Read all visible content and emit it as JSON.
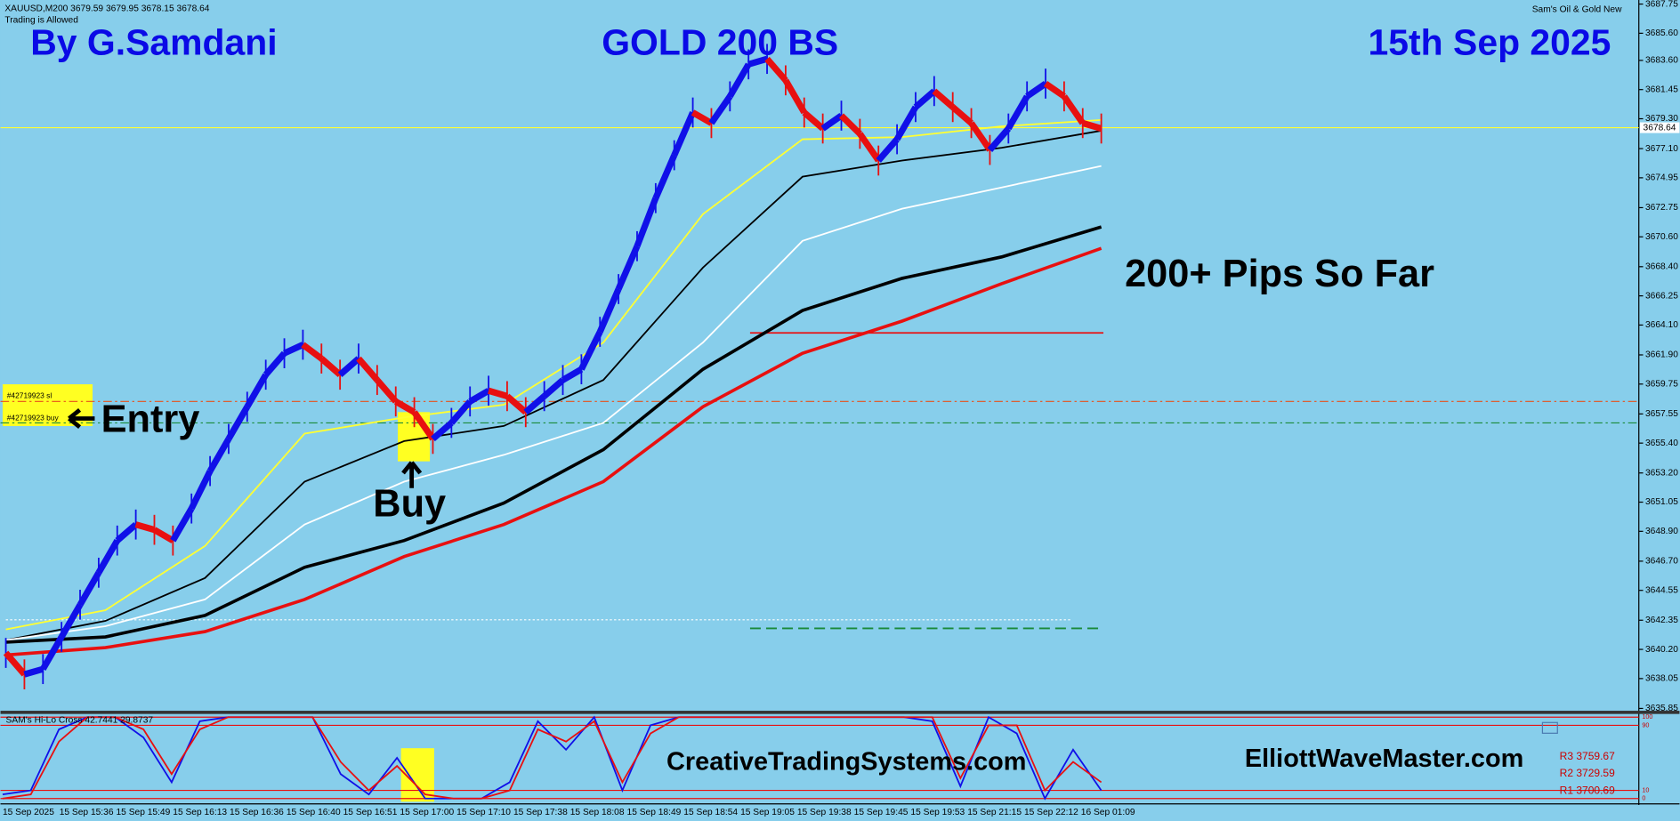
{
  "header": {
    "symbol_line": "XAUUSD,M200  3679.59 3679.95 3678.15 3678.64",
    "status": "Trading is Allowed",
    "author": "By G.Samdani",
    "title": "GOLD 200 BS",
    "date": "15th Sep 2025",
    "ea_name": "Sam's Oil & Gold New"
  },
  "annotations": {
    "pips": "200+ Pips So Far",
    "entry": "Entry",
    "buy": "Buy",
    "order_sl": "#42719923 sl",
    "order_buy": "#42719923 buy",
    "site1": "CreativeTradingSystems.com",
    "site2": "ElliottWaveMaster.com"
  },
  "price_chart": {
    "ylim": [
      3635.6,
      3688.05
    ],
    "yticks": [
      {
        "value": 3687.75,
        "label": "3687.75"
      },
      {
        "value": 3685.6,
        "label": "3685.60"
      },
      {
        "value": 3683.6,
        "label": "3683.60"
      },
      {
        "value": 3681.45,
        "label": "3681.45"
      },
      {
        "value": 3679.3,
        "label": "3679.30"
      },
      {
        "value": 3677.1,
        "label": "3677.10"
      },
      {
        "value": 3674.95,
        "label": "3674.95"
      },
      {
        "value": 3672.75,
        "label": "3672.75"
      },
      {
        "value": 3670.6,
        "label": "3670.60"
      },
      {
        "value": 3668.4,
        "label": "3668.40"
      },
      {
        "value": 3666.25,
        "label": "3666.25"
      },
      {
        "value": 3664.1,
        "label": "3664.10"
      },
      {
        "value": 3661.9,
        "label": "3661.90"
      },
      {
        "value": 3659.75,
        "label": "3659.75"
      },
      {
        "value": 3657.55,
        "label": "3657.55"
      },
      {
        "value": 3655.4,
        "label": "3655.40"
      },
      {
        "value": 3653.2,
        "label": "3653.20"
      },
      {
        "value": 3651.05,
        "label": "3651.05"
      },
      {
        "value": 3648.9,
        "label": "3648.90"
      },
      {
        "value": 3646.7,
        "label": "3646.70"
      },
      {
        "value": 3644.55,
        "label": "3644.55"
      },
      {
        "value": 3642.35,
        "label": "3642.35"
      },
      {
        "value": 3640.2,
        "label": "3640.20"
      },
      {
        "value": 3638.05,
        "label": "3638.05"
      },
      {
        "value": 3635.85,
        "label": "3635.85"
      }
    ],
    "current_price": {
      "value": 3678.64,
      "label": "3678.64"
    },
    "up_color": "#1010e8",
    "down_color": "#e81010",
    "prices": [
      3639.94,
      3638.36,
      3638.75,
      3641.12,
      3643.49,
      3645.85,
      3648.22,
      3649.4,
      3649.01,
      3648.22,
      3650.58,
      3653.34,
      3655.71,
      3658.08,
      3660.44,
      3662.02,
      3662.65,
      3661.63,
      3660.44,
      3661.63,
      3660.05,
      3658.47,
      3657.68,
      3655.71,
      3656.89,
      3658.47,
      3659.26,
      3658.86,
      3657.68,
      3658.86,
      3660.05,
      3660.84,
      3663.6,
      3666.75,
      3669.91,
      3673.45,
      3676.61,
      3679.76,
      3678.98,
      3680.95,
      3683.31,
      3683.71,
      3682.13,
      3679.76,
      3678.58,
      3679.53,
      3678.19,
      3676.22,
      3677.79,
      3680.16,
      3681.34,
      3680.16,
      3678.98,
      3677.0,
      3678.58,
      3680.95,
      3681.89,
      3680.95,
      3678.98,
      3678.58
    ],
    "moving_averages": [
      {
        "color": "#ffff33",
        "width": 1.5,
        "values": [
          3641.67,
          3643.09,
          3647.82,
          3656.1,
          3657.29,
          3658.23,
          3662.81,
          3672.27,
          3677.79,
          3677.95,
          3678.74,
          3679.21
        ]
      },
      {
        "color": "#000000",
        "width": 1.5,
        "values": [
          3640.88,
          3642.3,
          3645.46,
          3652.56,
          3655.55,
          3656.66,
          3660.05,
          3668.33,
          3675.03,
          3676.22,
          3677.16,
          3678.42
        ]
      },
      {
        "color": "#ffffff",
        "width": 1.5,
        "values": [
          3640.88,
          3641.91,
          3643.88,
          3649.4,
          3652.56,
          3654.53,
          3656.89,
          3662.81,
          3670.3,
          3672.67,
          3674.24,
          3675.82
        ]
      },
      {
        "color": "#000000",
        "width": 3,
        "values": [
          3640.73,
          3641.12,
          3642.7,
          3646.25,
          3648.22,
          3650.98,
          3654.92,
          3660.84,
          3665.17,
          3667.54,
          3669.12,
          3671.33
        ]
      },
      {
        "color": "#e81010",
        "width": 3,
        "values": [
          3639.78,
          3640.33,
          3641.51,
          3643.88,
          3647.04,
          3649.4,
          3652.56,
          3658.08,
          3662.02,
          3664.39,
          3667.15,
          3669.75
        ]
      }
    ],
    "levels": [
      {
        "value": 3678.64,
        "color": "#ffff33",
        "style": "solid",
        "span": "full"
      },
      {
        "value": 3658.47,
        "color": "#e8501a",
        "style": "dashdot",
        "span": "full"
      },
      {
        "value": 3656.89,
        "color": "#1a8a3a",
        "style": "dashdot",
        "span": "full"
      },
      {
        "value": 3663.52,
        "color": "#e81010",
        "style": "solid",
        "span": "right"
      },
      {
        "value": 3641.75,
        "color": "#1a8a3a",
        "style": "dashed",
        "span": "right"
      },
      {
        "value": 3642.38,
        "color": "#ffffff",
        "style": "dotted",
        "span": "left"
      }
    ]
  },
  "indicator": {
    "label": "SAM's Hi-Lo Cross 42.7441 29.8737",
    "ylim": [
      0,
      100
    ],
    "yticks": [
      0,
      10,
      90,
      100
    ],
    "series": [
      {
        "color": "#1010e8",
        "values": [
          5,
          10,
          85,
          100,
          100,
          75,
          20,
          95,
          100,
          100,
          100,
          100,
          30,
          5,
          50,
          0,
          0,
          0,
          20,
          95,
          60,
          100,
          10,
          90,
          100,
          100,
          100,
          100,
          100,
          100,
          100,
          100,
          100,
          95,
          15,
          100,
          80,
          0,
          60,
          10
        ]
      },
      {
        "color": "#e81010",
        "values": [
          0,
          5,
          70,
          100,
          100,
          85,
          30,
          85,
          100,
          100,
          100,
          100,
          45,
          10,
          40,
          5,
          0,
          0,
          10,
          85,
          70,
          95,
          20,
          80,
          100,
          100,
          100,
          100,
          100,
          100,
          100,
          100,
          100,
          100,
          25,
          90,
          90,
          10,
          45,
          20
        ]
      }
    ],
    "pivots": [
      "R3 3759.67",
      "R2 3729.59",
      "R1 3700.69"
    ]
  },
  "time_axis": [
    "15 Sep 2025",
    "15 Sep 15:36",
    "15 Sep 15:49",
    "15 Sep 16:13",
    "15 Sep 16:36",
    "15 Sep 16:40",
    "15 Sep 16:51",
    "15 Sep 17:00",
    "15 Sep 17:10",
    "15 Sep 17:38",
    "15 Sep 18:08",
    "15 Sep 18:49",
    "15 Sep 18:54",
    "15 Sep 19:05",
    "15 Sep 19:38",
    "15 Sep 19:45",
    "15 Sep 19:53",
    "15 Sep 21:15",
    "15 Sep 22:12",
    "16 Sep 01:09"
  ]
}
